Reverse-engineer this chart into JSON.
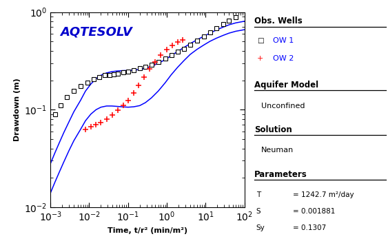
{
  "title": "AQTESOLV",
  "xlabel": "Time, t/r² (min/m²)",
  "ylabel": "Drawdown (m)",
  "xlim": [
    0.001,
    100.0
  ],
  "ylim": [
    0.01,
    1.0
  ],
  "background_color": "#ffffff",
  "title_color": "#0000cc",
  "obs_wells_label": "Obs. Wells",
  "ow1_label": "OW 1",
  "ow2_label": "OW 2",
  "aquifer_model_label": "Aquifer Model",
  "aquifer_model_value": "Unconfined",
  "solution_label": "Solution",
  "solution_value": "Neuman",
  "parameters_label": "Parameters",
  "ow1_x": [
    0.0013,
    0.0018,
    0.0026,
    0.004,
    0.006,
    0.009,
    0.013,
    0.018,
    0.025,
    0.033,
    0.042,
    0.055,
    0.075,
    0.1,
    0.14,
    0.2,
    0.28,
    0.4,
    0.6,
    0.9,
    1.3,
    1.9,
    2.8,
    4.0,
    6.0,
    9.0,
    13.0,
    19.0,
    28.0,
    40.0,
    60.0
  ],
  "ow1_y": [
    0.09,
    0.11,
    0.135,
    0.155,
    0.175,
    0.19,
    0.205,
    0.215,
    0.225,
    0.225,
    0.23,
    0.235,
    0.24,
    0.245,
    0.255,
    0.265,
    0.275,
    0.29,
    0.31,
    0.335,
    0.36,
    0.39,
    0.42,
    0.46,
    0.51,
    0.56,
    0.62,
    0.68,
    0.75,
    0.82,
    0.88
  ],
  "ow2_x": [
    0.008,
    0.011,
    0.015,
    0.02,
    0.028,
    0.04,
    0.055,
    0.075,
    0.1,
    0.14,
    0.19,
    0.26,
    0.36,
    0.5,
    0.7,
    1.0,
    1.4,
    1.9,
    2.6
  ],
  "ow2_y": [
    0.063,
    0.067,
    0.07,
    0.074,
    0.08,
    0.088,
    0.098,
    0.11,
    0.125,
    0.148,
    0.178,
    0.215,
    0.26,
    0.31,
    0.362,
    0.41,
    0.455,
    0.49,
    0.52
  ],
  "curve1_x": [
    0.001,
    0.0013,
    0.0017,
    0.0022,
    0.003,
    0.004,
    0.006,
    0.008,
    0.011,
    0.015,
    0.02,
    0.028,
    0.038,
    0.052,
    0.07,
    0.1,
    0.14,
    0.2,
    0.28,
    0.4,
    0.6,
    0.9,
    1.3,
    1.9,
    2.8,
    4.0,
    6.0,
    9.0,
    13.0,
    19.0,
    28.0,
    40.0,
    60.0,
    100.0
  ],
  "curve1_y": [
    0.028,
    0.036,
    0.046,
    0.058,
    0.075,
    0.095,
    0.125,
    0.155,
    0.183,
    0.208,
    0.225,
    0.238,
    0.245,
    0.249,
    0.251,
    0.252,
    0.254,
    0.258,
    0.265,
    0.278,
    0.298,
    0.325,
    0.358,
    0.395,
    0.435,
    0.475,
    0.52,
    0.565,
    0.61,
    0.655,
    0.7,
    0.74,
    0.775,
    0.805
  ],
  "curve2_x": [
    0.001,
    0.0013,
    0.0017,
    0.0022,
    0.003,
    0.004,
    0.006,
    0.008,
    0.011,
    0.015,
    0.02,
    0.028,
    0.038,
    0.052,
    0.07,
    0.1,
    0.14,
    0.2,
    0.28,
    0.4,
    0.6,
    0.9,
    1.3,
    1.9,
    2.8,
    4.0,
    6.0,
    9.0,
    13.0,
    19.0,
    28.0,
    40.0,
    60.0,
    100.0
  ],
  "curve2_y": [
    0.014,
    0.018,
    0.023,
    0.029,
    0.038,
    0.048,
    0.063,
    0.077,
    0.09,
    0.1,
    0.106,
    0.109,
    0.109,
    0.108,
    0.107,
    0.106,
    0.107,
    0.11,
    0.118,
    0.132,
    0.155,
    0.188,
    0.228,
    0.272,
    0.32,
    0.368,
    0.415,
    0.46,
    0.502,
    0.54,
    0.576,
    0.608,
    0.636,
    0.66
  ]
}
